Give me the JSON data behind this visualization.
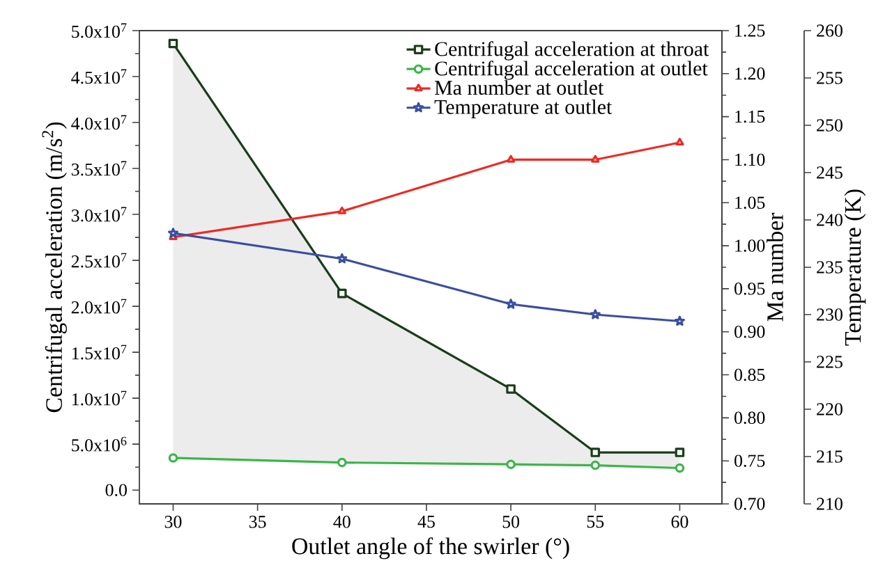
{
  "chart_data": {
    "type": "line",
    "xlabel": "Outlet angle of the swirler (°)",
    "ylabel": "Centrifugal acceleration (m/s$^{2}$)",
    "y2label": "Ma number",
    "y3label": "Temperature (K)",
    "x": [
      30,
      40,
      50,
      55,
      60
    ],
    "xlim": [
      28,
      62.5
    ],
    "xticks": [
      30,
      35,
      40,
      45,
      50,
      55,
      60
    ],
    "ylim": [
      -1500000,
      50000000
    ],
    "yticks": [
      {
        "value": 0,
        "label": "0.0"
      },
      {
        "value": 5000000,
        "label": "5.0x10$^{6}$"
      },
      {
        "value": 10000000,
        "label": "1.0x10$^{7}$"
      },
      {
        "value": 15000000,
        "label": "1.5x10$^{7}$"
      },
      {
        "value": 20000000,
        "label": "2.0x10$^{7}$"
      },
      {
        "value": 25000000,
        "label": "2.5x10$^{7}$"
      },
      {
        "value": 30000000,
        "label": "3.0x10$^{7}$"
      },
      {
        "value": 35000000,
        "label": "3.5x10$^{7}$"
      },
      {
        "value": 40000000,
        "label": "4.0x10$^{7}$"
      },
      {
        "value": 45000000,
        "label": "4.5x10$^{7}$"
      },
      {
        "value": 50000000,
        "label": "5.0x10$^{7}$"
      }
    ],
    "y2lim": [
      0.7,
      1.25
    ],
    "y2ticks": [
      {
        "value": 0.7,
        "label": "0.70"
      },
      {
        "value": 0.75,
        "label": "0.75"
      },
      {
        "value": 0.8,
        "label": "0.80"
      },
      {
        "value": 0.85,
        "label": "0.85"
      },
      {
        "value": 0.9,
        "label": "0.90"
      },
      {
        "value": 0.95,
        "label": "0.95"
      },
      {
        "value": 1.0,
        "label": "1.00"
      },
      {
        "value": 1.05,
        "label": "1.05"
      },
      {
        "value": 1.1,
        "label": "1.10"
      },
      {
        "value": 1.15,
        "label": "1.15"
      },
      {
        "value": 1.2,
        "label": "1.20"
      },
      {
        "value": 1.25,
        "label": "1.25"
      }
    ],
    "y3lim": [
      210,
      260
    ],
    "y3ticks": [
      210,
      215,
      220,
      225,
      230,
      235,
      240,
      245,
      250,
      255,
      260
    ],
    "legend": "top right",
    "grid": false,
    "line_style": "solid",
    "series": [
      {
        "name": "Centrifugal acceleration at throat",
        "color": "#1a3d1a",
        "marker": "square",
        "values": [
          48600000,
          21400000,
          11000000,
          4100000,
          4100000
        ],
        "lower": [
          3500000,
          3000000,
          2800000,
          2700000,
          2400000
        ],
        "upper": [
          48600000,
          21400000,
          11000000,
          4100000,
          4100000
        ]
      },
      {
        "name": "Centrifugal acceleration at outlet",
        "color": "#3cb54a",
        "marker": "circle",
        "values": [
          3500000,
          3000000,
          2800000,
          2700000,
          2400000
        ]
      },
      {
        "name": "Ma number at outlet",
        "color": "#ee2a24",
        "marker": "triangle",
        "axis": "y2",
        "values": [
          1.01,
          1.04,
          1.1,
          1.1,
          1.12
        ]
      },
      {
        "name": "Temperature at outlet",
        "color": "#3a4ea0",
        "marker": "star",
        "axis": "y3",
        "values": [
          238.6,
          235.9,
          231.1,
          230.0,
          229.3
        ]
      }
    ]
  }
}
